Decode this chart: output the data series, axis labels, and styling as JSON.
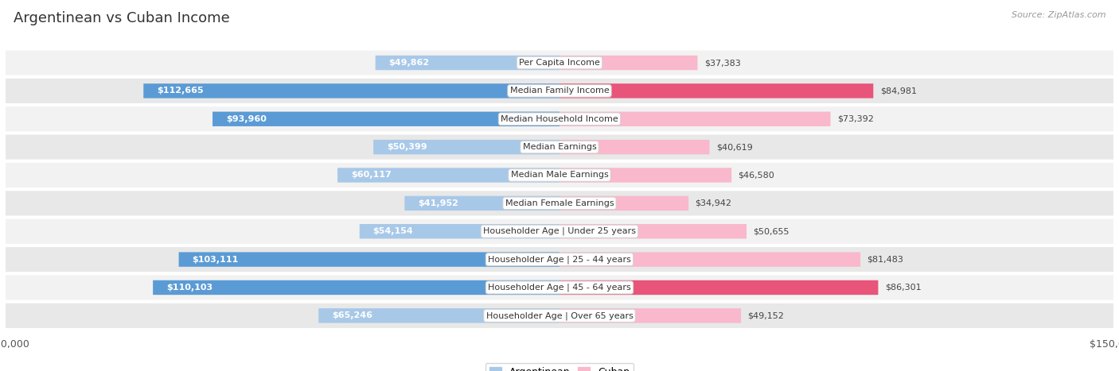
{
  "title": "Argentinean vs Cuban Income",
  "source": "Source: ZipAtlas.com",
  "categories": [
    "Per Capita Income",
    "Median Family Income",
    "Median Household Income",
    "Median Earnings",
    "Median Male Earnings",
    "Median Female Earnings",
    "Householder Age | Under 25 years",
    "Householder Age | 25 - 44 years",
    "Householder Age | 45 - 64 years",
    "Householder Age | Over 65 years"
  ],
  "argentinean": [
    49862,
    112665,
    93960,
    50399,
    60117,
    41952,
    54154,
    103111,
    110103,
    65246
  ],
  "cuban": [
    37383,
    84981,
    73392,
    40619,
    46580,
    34942,
    50655,
    81483,
    86301,
    49152
  ],
  "max_val": 150000,
  "blue_light": "#a8c8e8",
  "blue_dark": "#5b9bd5",
  "pink_light": "#f9b8cc",
  "pink_dark": "#e8547a",
  "row_bg_odd": "#f2f2f2",
  "row_bg_even": "#e8e8e8",
  "title_fontsize": 13,
  "tick_fontsize": 9,
  "bar_height": 0.52,
  "label_fontsize": 8,
  "cat_fontsize": 8,
  "threshold_inside": 0.27
}
